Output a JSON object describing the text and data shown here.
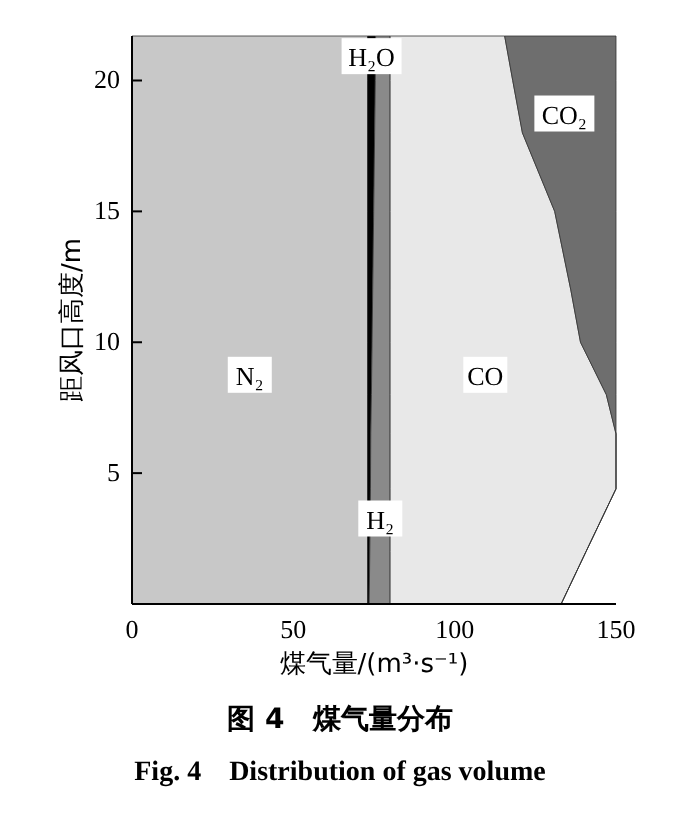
{
  "chart_data": {
    "type": "area",
    "orientation": "horizontal",
    "stacked": true,
    "title": "图 4　煤气量分布",
    "subtitle": "Fig. 4　Distribution of gas volume",
    "xlabel": "煤气量/(m³·s⁻¹)",
    "ylabel": "距风口高度/m",
    "x": [
      0,
      2,
      4.4,
      6.5,
      8,
      10,
      12,
      15,
      18,
      20,
      21.7
    ],
    "series": [
      {
        "name": "N₂",
        "color": "#c8c8c8",
        "values": [
          73,
          73,
          73,
          73,
          73,
          73,
          73,
          73,
          73,
          73,
          73
        ]
      },
      {
        "name": "H₂O",
        "color": "#000000",
        "values": [
          0.5,
          0.7,
          0.9,
          1,
          1.2,
          1.4,
          1.6,
          1.9,
          2.2,
          2.4,
          2.5
        ]
      },
      {
        "name": "H₂",
        "color": "#8a8a8a",
        "values": [
          6.5,
          6.3,
          6.1,
          6,
          5.8,
          5.6,
          5.4,
          5.1,
          4.8,
          4.6,
          4.5
        ]
      },
      {
        "name": "CO",
        "color": "#e8e8e8",
        "values": [
          53,
          60.7,
          70,
          70,
          67,
          59,
          56,
          51,
          41,
          38,
          35.5
        ]
      },
      {
        "name": "CO₂",
        "color": "#6e6e6e",
        "values": [
          0,
          0,
          0,
          0,
          3,
          11,
          14,
          19,
          29,
          32,
          34.5
        ]
      }
    ],
    "xlim": [
      0,
      150
    ],
    "xticks": [
      0,
      50,
      100,
      150
    ],
    "ylim": [
      0,
      21.7
    ],
    "yticks": [
      5,
      10,
      15,
      20
    ],
    "grid": false
  }
}
